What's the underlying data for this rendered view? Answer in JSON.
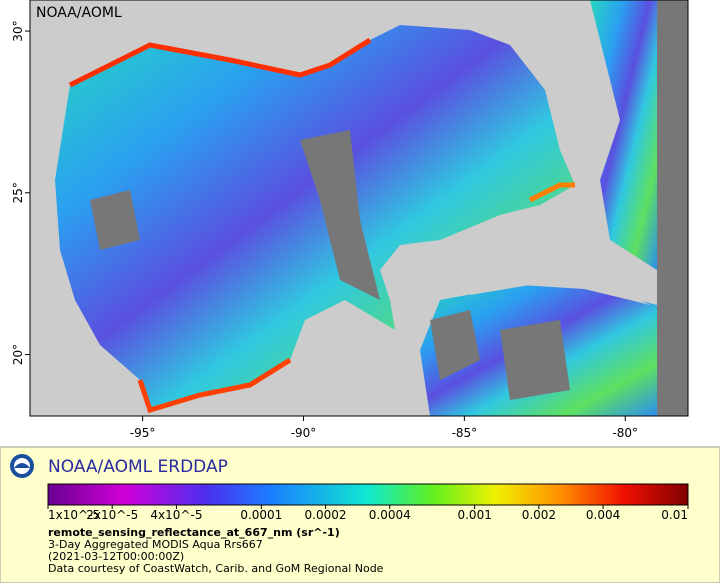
{
  "map": {
    "watermark": "NOAA/AOML",
    "xlim": [
      -98.5,
      -78.05
    ],
    "ylim": [
      18.1,
      30.96
    ],
    "xticks": [
      {
        "value": -95,
        "label": "-95°"
      },
      {
        "value": -90,
        "label": "-90°"
      },
      {
        "value": -85,
        "label": "-85°"
      },
      {
        "value": -80,
        "label": "-80°"
      }
    ],
    "yticks": [
      {
        "value": 20,
        "label": "20°"
      },
      {
        "value": 25,
        "label": "25°"
      },
      {
        "value": 30,
        "label": "30°"
      }
    ]
  },
  "legend": {
    "title": "NOAA/AOML ERDDAP",
    "colorbar": {
      "scale": "log",
      "lim": [
        1e-05,
        0.01
      ],
      "ticks": [
        {
          "value": 1e-05,
          "label": "1x10^-5"
        },
        {
          "value": 2e-05,
          "label": "2x10^-5"
        },
        {
          "value": 4e-05,
          "label": "4x10^-5"
        },
        0.0001,
        0.0002,
        0.0004,
        0.001,
        0.002,
        0.004,
        0.01
      ]
    },
    "variable": "remote_sensing_reflectance_at_667_nm (sr^-1)",
    "dataset": "3-Day Aggregated MODIS Aqua Rrs667",
    "time": "(2021-03-12T00:00:00Z)",
    "credit": "Data courtesy of CoastWatch, Carib. and GoM Regional Node"
  }
}
